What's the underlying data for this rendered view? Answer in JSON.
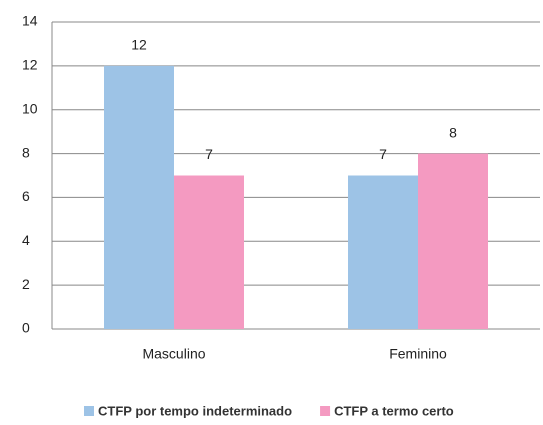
{
  "chart_data": {
    "type": "bar",
    "categories": [
      "Masculino",
      "Feminino"
    ],
    "series": [
      {
        "name": "CTFP por tempo indeterminado",
        "color": "#9dc3e6",
        "values": [
          12,
          7
        ]
      },
      {
        "name": "CTFP a termo certo",
        "color": "#f49ac1",
        "values": [
          7,
          8
        ]
      }
    ],
    "ylim": [
      0,
      14
    ],
    "yticks": [
      0,
      2,
      4,
      6,
      8,
      10,
      12,
      14
    ],
    "grid": true,
    "legend": "bottom"
  }
}
